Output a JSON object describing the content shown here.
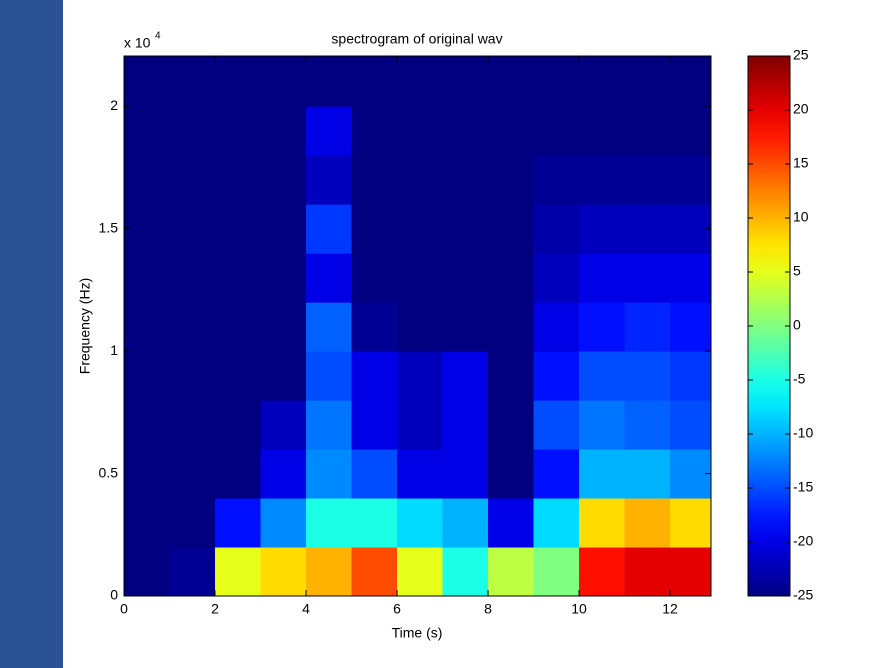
{
  "chart_data": {
    "type": "heatmap",
    "title": "spectrogram of original wav",
    "x_label": "Time (s)",
    "y_label": "Frequency (Hz)",
    "y_multiplier": {
      "base": "x 10",
      "exponent": "4"
    },
    "x": [
      0.5,
      1.5,
      2.5,
      3.5,
      4.5,
      5.5,
      6.5,
      7.5,
      8.5,
      9.5,
      10.5,
      11.5,
      12.5
    ],
    "y": [
      1000,
      3000,
      5000,
      7000,
      9000,
      11000,
      13000,
      15000,
      17000,
      19000,
      21000
    ],
    "z": [
      [
        -25,
        -24,
        5,
        8,
        10,
        15,
        5,
        -5,
        3,
        0,
        18,
        20,
        20
      ],
      [
        -25,
        -25,
        -18,
        -12,
        -5,
        -5,
        -8,
        -10,
        -20,
        -8,
        8,
        10,
        8
      ],
      [
        -25,
        -25,
        -25,
        -20,
        -12,
        -15,
        -20,
        -20,
        -25,
        -18,
        -10,
        -10,
        -12
      ],
      [
        -25,
        -25,
        -25,
        -22,
        -13,
        -20,
        -22,
        -20,
        -25,
        -15,
        -13,
        -14,
        -15
      ],
      [
        -25,
        -25,
        -25,
        -25,
        -15,
        -20,
        -22,
        -20,
        -25,
        -18,
        -15,
        -15,
        -16
      ],
      [
        -25,
        -25,
        -25,
        -25,
        -14,
        -24,
        -25,
        -25,
        -25,
        -20,
        -18,
        -17,
        -18
      ],
      [
        -25,
        -25,
        -25,
        -25,
        -20,
        -25,
        -25,
        -25,
        -25,
        -22,
        -20,
        -20,
        -20
      ],
      [
        -25,
        -25,
        -25,
        -25,
        -16,
        -25,
        -25,
        -25,
        -25,
        -23,
        -22,
        -22,
        -22
      ],
      [
        -25,
        -25,
        -25,
        -25,
        -22,
        -25,
        -25,
        -25,
        -25,
        -24,
        -24,
        -24,
        -24
      ],
      [
        -25,
        -25,
        -25,
        -25,
        -20,
        -25,
        -25,
        -25,
        -25,
        -25,
        -25,
        -25,
        -25
      ],
      [
        -25,
        -25,
        -25,
        -25,
        -25,
        -25,
        -25,
        -25,
        -25,
        -25,
        -25,
        -25,
        -25
      ]
    ],
    "colormap": "jet",
    "xlim": [
      0,
      12.9
    ],
    "xticks": [
      0,
      2,
      4,
      6,
      8,
      10,
      12
    ],
    "ylim": [
      0,
      22050
    ],
    "yticks": [
      0,
      {
        "value": 5000,
        "label": "0.5"
      },
      {
        "value": 10000,
        "label": "1"
      },
      {
        "value": 15000,
        "label": "1.5"
      },
      {
        "value": 20000,
        "label": "2"
      }
    ],
    "clim": [
      -25,
      25
    ],
    "cticks": [
      -25,
      -20,
      -15,
      -10,
      -5,
      0,
      5,
      10,
      15,
      20,
      25
    ]
  }
}
